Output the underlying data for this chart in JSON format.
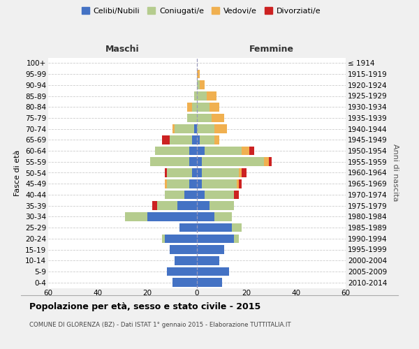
{
  "age_groups": [
    "0-4",
    "5-9",
    "10-14",
    "15-19",
    "20-24",
    "25-29",
    "30-34",
    "35-39",
    "40-44",
    "45-49",
    "50-54",
    "55-59",
    "60-64",
    "65-69",
    "70-74",
    "75-79",
    "80-84",
    "85-89",
    "90-94",
    "95-99",
    "100+"
  ],
  "birth_years": [
    "2010-2014",
    "2005-2009",
    "2000-2004",
    "1995-1999",
    "1990-1994",
    "1985-1989",
    "1980-1984",
    "1975-1979",
    "1970-1974",
    "1965-1969",
    "1960-1964",
    "1955-1959",
    "1950-1954",
    "1945-1949",
    "1940-1944",
    "1935-1939",
    "1930-1934",
    "1925-1929",
    "1920-1924",
    "1915-1919",
    "≤ 1914"
  ],
  "colors": {
    "celibi": "#4472C4",
    "coniugati": "#b5cc8e",
    "vedovi": "#f0b050",
    "divorziati": "#cc2222"
  },
  "legend_labels": [
    "Celibi/Nubili",
    "Coniugati/e",
    "Vedovi/e",
    "Divorziati/e"
  ],
  "maschi": {
    "celibi": [
      10,
      12,
      9,
      11,
      13,
      7,
      20,
      8,
      5,
      3,
      2,
      3,
      3,
      2,
      1,
      0,
      0,
      0,
      0,
      0,
      0
    ],
    "coniugati": [
      0,
      0,
      0,
      0,
      1,
      0,
      9,
      8,
      8,
      9,
      10,
      16,
      14,
      9,
      8,
      4,
      2,
      1,
      0,
      0,
      0
    ],
    "vedovi": [
      0,
      0,
      0,
      0,
      0,
      0,
      0,
      0,
      0,
      1,
      0,
      0,
      0,
      0,
      1,
      0,
      2,
      0,
      0,
      0,
      0
    ],
    "divorziati": [
      0,
      0,
      0,
      0,
      0,
      0,
      0,
      2,
      0,
      0,
      1,
      0,
      0,
      3,
      0,
      0,
      0,
      0,
      0,
      0,
      0
    ]
  },
  "femmine": {
    "nubili": [
      10,
      13,
      9,
      11,
      15,
      14,
      7,
      5,
      3,
      2,
      2,
      2,
      3,
      1,
      0,
      0,
      0,
      0,
      0,
      0,
      0
    ],
    "coniugate": [
      0,
      0,
      0,
      0,
      2,
      4,
      7,
      10,
      12,
      14,
      15,
      25,
      15,
      6,
      7,
      6,
      5,
      4,
      1,
      0,
      0
    ],
    "vedove": [
      0,
      0,
      0,
      0,
      0,
      0,
      0,
      0,
      0,
      1,
      1,
      2,
      3,
      2,
      5,
      5,
      4,
      4,
      2,
      1,
      0
    ],
    "divorziate": [
      0,
      0,
      0,
      0,
      0,
      0,
      0,
      0,
      2,
      1,
      2,
      1,
      2,
      0,
      0,
      0,
      0,
      0,
      0,
      0,
      0
    ]
  },
  "title": "Popolazione per età, sesso e stato civile - 2015",
  "subtitle": "COMUNE DI GLORENZA (BZ) - Dati ISTAT 1° gennaio 2015 - Elaborazione TUTTITALIA.IT",
  "xlabel_left": "Maschi",
  "xlabel_right": "Femmine",
  "ylabel_left": "Fasce di età",
  "ylabel_right": "Anni di nascita",
  "xlim": 60,
  "bg_color": "#f0f0f0",
  "bar_bg": "#ffffff",
  "grid_color": "#cccccc"
}
